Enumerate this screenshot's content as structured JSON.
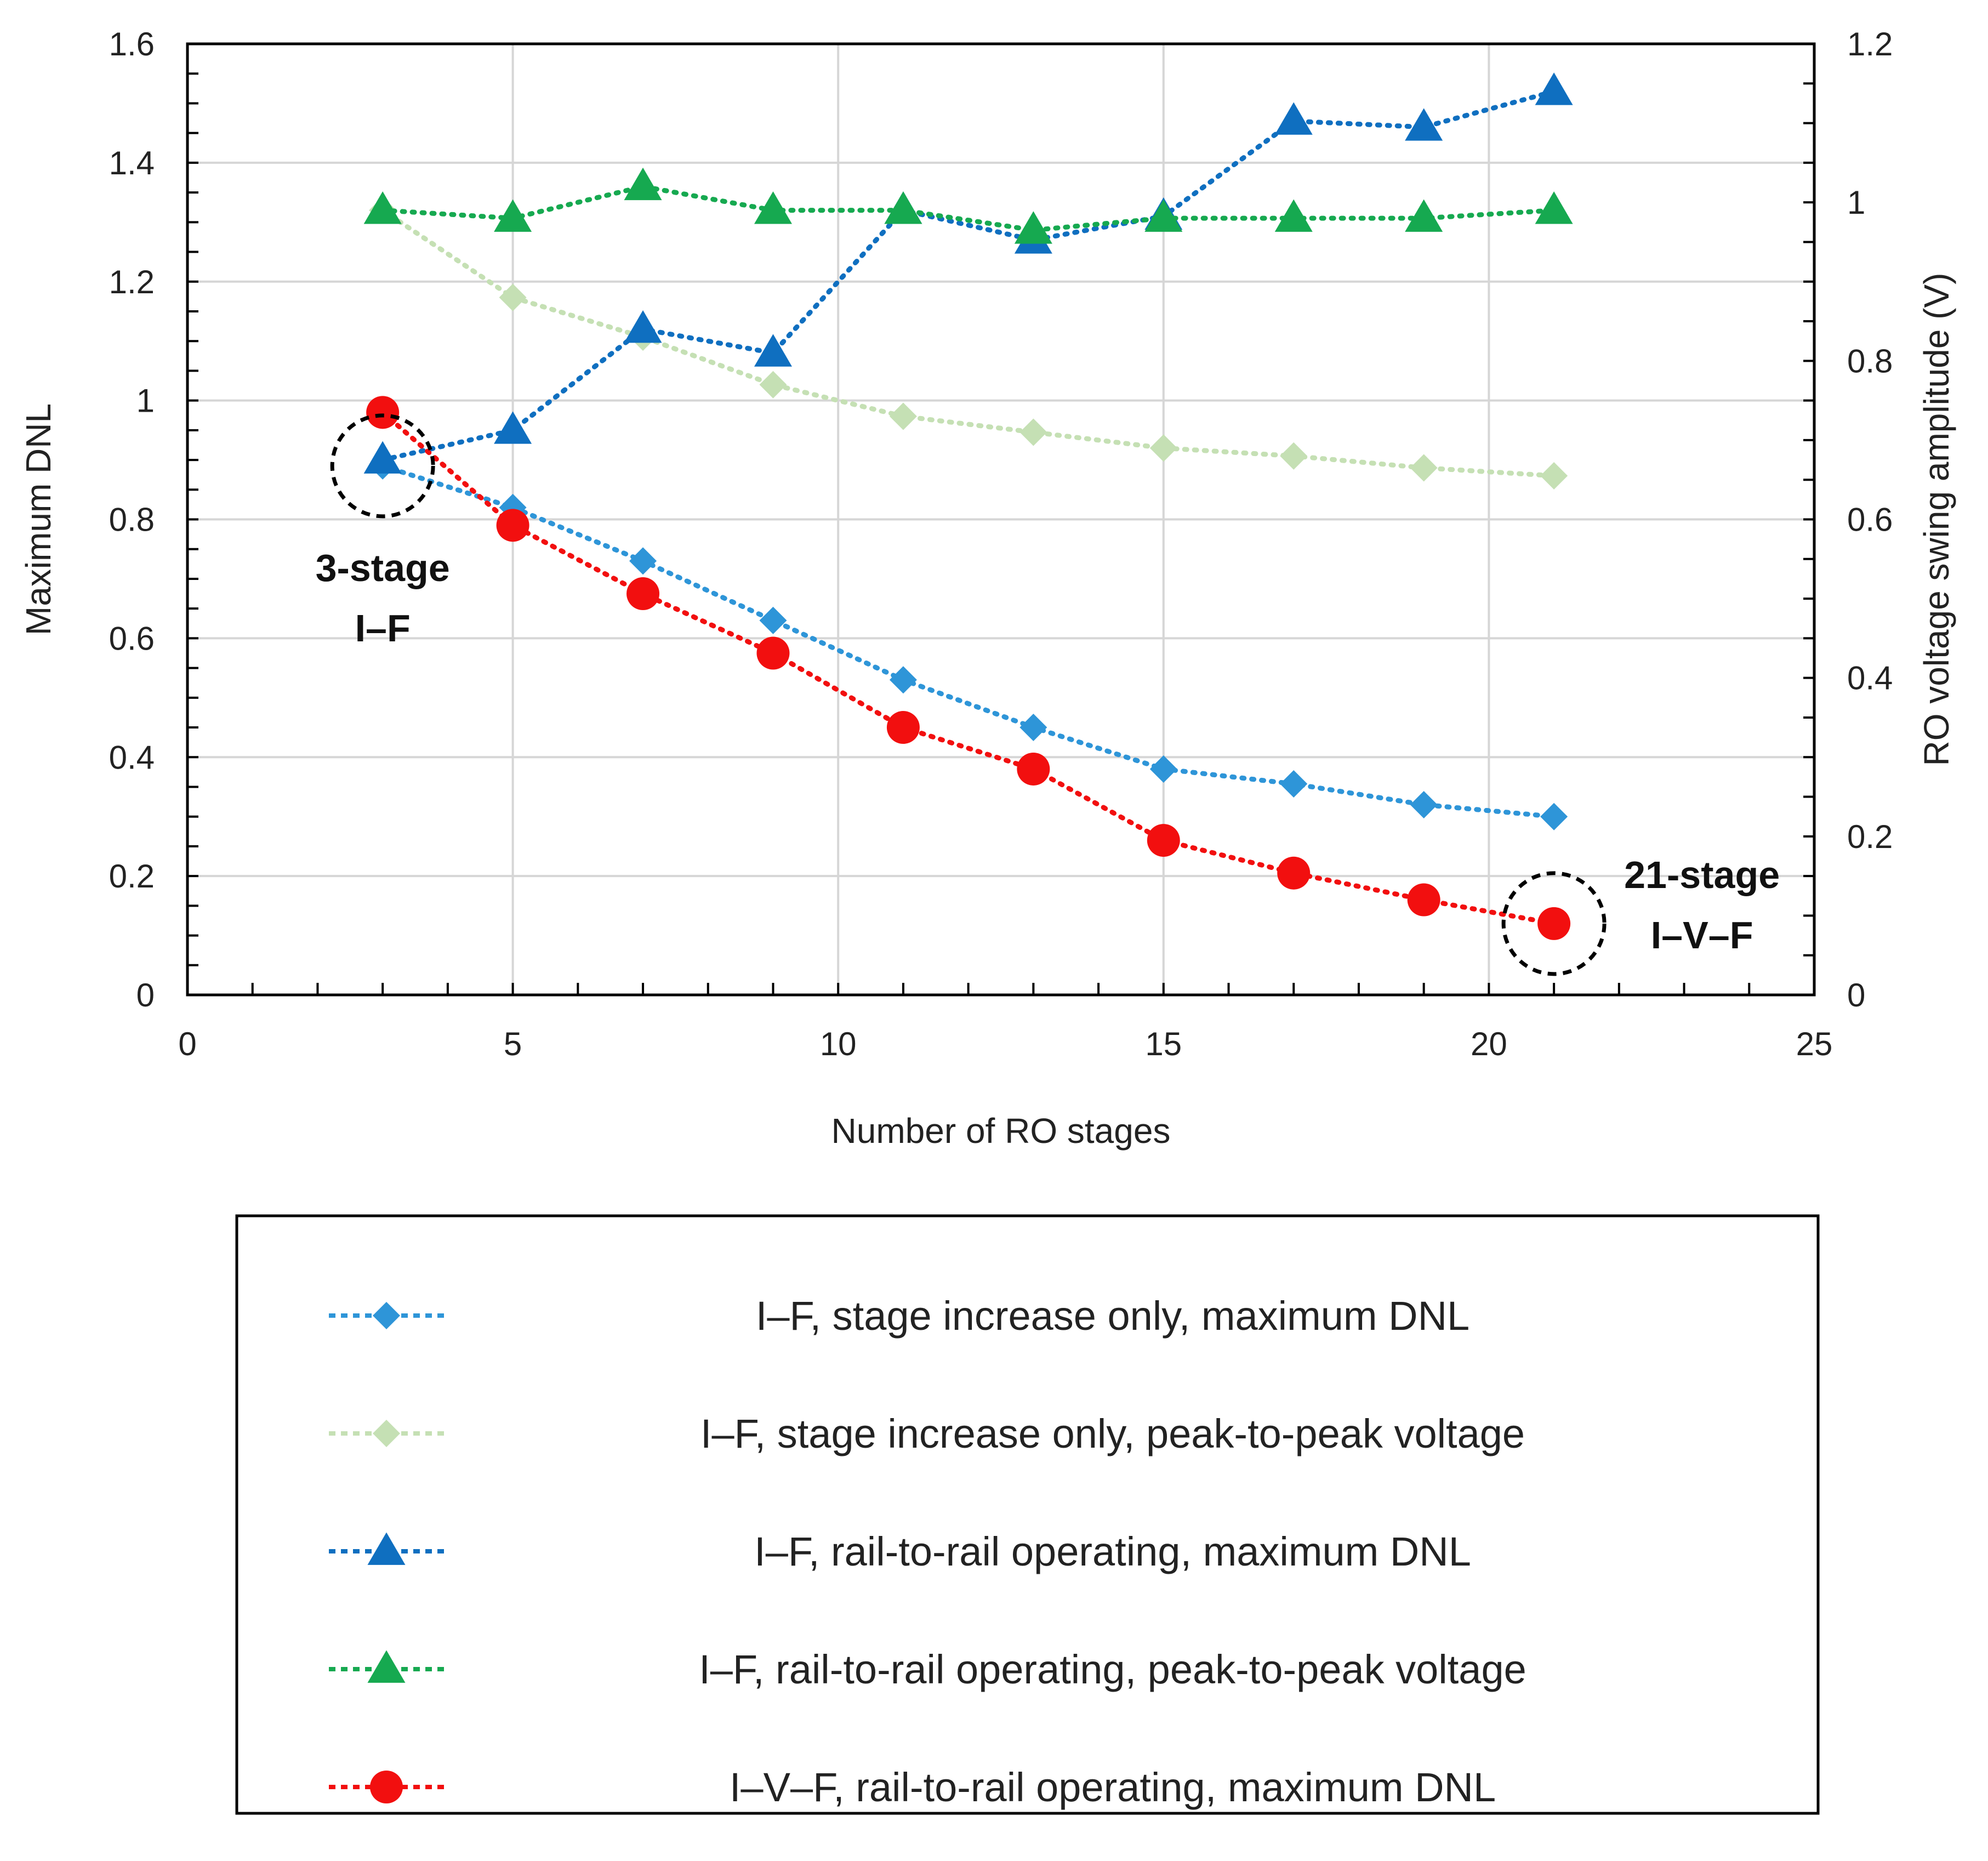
{
  "chart_data": {
    "type": "line",
    "xlabel": "Number of RO stages",
    "ylabel": "Maximum DNL",
    "y2label": "RO voltage swing amplitude (V)",
    "xlim": [
      0,
      25
    ],
    "ylim": [
      0,
      1.6
    ],
    "y2lim": [
      0,
      1.2
    ],
    "x_ticks": [
      "0",
      "5",
      "10",
      "15",
      "20",
      "25"
    ],
    "y_ticks": [
      "0",
      "0.2",
      "0.4",
      "0.6",
      "0.8",
      "1",
      "1.2",
      "1.4",
      "1.6"
    ],
    "y2_ticks": [
      "0",
      "0.2",
      "0.4",
      "0.6",
      "0.8",
      "1",
      "1.2"
    ],
    "grid": true,
    "legend_position": "bottom",
    "series": [
      {
        "name": "I–F, stage increase only, maximum DNL",
        "axis": "left",
        "marker": "diamond",
        "color": "#2E95D8",
        "x": [
          3,
          5,
          7,
          9,
          11,
          13,
          15,
          17,
          19,
          21
        ],
        "y": [
          0.89,
          0.82,
          0.73,
          0.63,
          0.53,
          0.45,
          0.38,
          0.355,
          0.32,
          0.3
        ]
      },
      {
        "name": "I–F, stage increase only, peak-to-peak voltage",
        "axis": "right",
        "marker": "diamond",
        "color": "#C5E0B4",
        "x": [
          3,
          5,
          7,
          9,
          11,
          13,
          15,
          17,
          19,
          21
        ],
        "y": [
          0.99,
          0.88,
          0.83,
          0.77,
          0.73,
          0.71,
          0.69,
          0.68,
          0.665,
          0.655
        ]
      },
      {
        "name": "I–F, rail-to-rail operating, maximum DNL",
        "axis": "left",
        "marker": "triangle",
        "color": "#0F6FC0",
        "x": [
          3,
          5,
          7,
          9,
          11,
          13,
          15,
          17,
          19,
          21
        ],
        "y": [
          0.9,
          0.95,
          1.12,
          1.08,
          1.32,
          1.27,
          1.31,
          1.47,
          1.46,
          1.52
        ]
      },
      {
        "name": "I–F, rail-to-rail operating, peak-to-peak voltage",
        "axis": "right",
        "marker": "triangle",
        "color": "#16A950",
        "x": [
          3,
          5,
          7,
          9,
          11,
          13,
          15,
          17,
          19,
          21
        ],
        "y": [
          0.99,
          0.98,
          1.02,
          0.99,
          0.99,
          0.965,
          0.98,
          0.98,
          0.98,
          0.99
        ]
      },
      {
        "name": "I–V–F, rail-to-rail operating, maximum DNL",
        "axis": "left",
        "marker": "circle",
        "color": "#F20F0F",
        "x": [
          3,
          5,
          7,
          9,
          11,
          13,
          15,
          17,
          19,
          21
        ],
        "y": [
          0.98,
          0.79,
          0.675,
          0.575,
          0.45,
          0.38,
          0.26,
          0.205,
          0.16,
          0.12
        ]
      }
    ],
    "annotations": [
      {
        "lines": [
          "3-stage",
          "I–F"
        ],
        "x": 3,
        "y": 0.89
      },
      {
        "lines": [
          "21-stage",
          "I–V–F"
        ],
        "x": 21,
        "y": 0.12
      }
    ]
  }
}
